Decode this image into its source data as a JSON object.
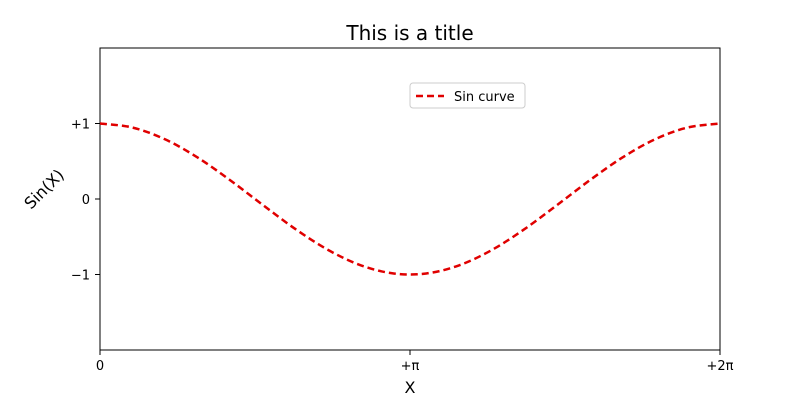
{
  "chart_data": {
    "type": "line",
    "title": "This is a title",
    "xlabel": "X",
    "ylabel": "Sin(X)",
    "xlim": [
      0,
      6.283185307179586
    ],
    "ylim": [
      -2,
      2
    ],
    "x_ticks": [
      {
        "value": 0,
        "label": "0"
      },
      {
        "value": 3.141592653589793,
        "label": "+π"
      },
      {
        "value": 6.283185307179586,
        "label": "+2π"
      }
    ],
    "y_ticks": [
      {
        "value": 1,
        "label": "+1"
      },
      {
        "value": 0,
        "label": "0"
      },
      {
        "value": -1,
        "label": "−1"
      }
    ],
    "grid": false,
    "legend": {
      "position": "upper-center"
    },
    "series": [
      {
        "name": "Sin curve",
        "color": "#e00000",
        "style": "dashed",
        "x": [
          0,
          0.3307,
          0.6614,
          0.9921,
          1.3228,
          1.6535,
          1.9842,
          2.3149,
          2.6456,
          2.9762,
          3.3069,
          3.6376,
          3.9683,
          4.299,
          4.6297,
          4.9604,
          5.2911,
          5.6218,
          5.9525,
          6.2832
        ],
        "y": [
          1.0,
          0.9458,
          0.7891,
          0.5469,
          0.2455,
          -0.0826,
          -0.4017,
          -0.6773,
          -0.8795,
          -0.9864,
          -0.9864,
          -0.8795,
          -0.6773,
          -0.4017,
          -0.0826,
          0.2455,
          0.5469,
          0.7891,
          0.9458,
          1.0
        ]
      }
    ]
  }
}
